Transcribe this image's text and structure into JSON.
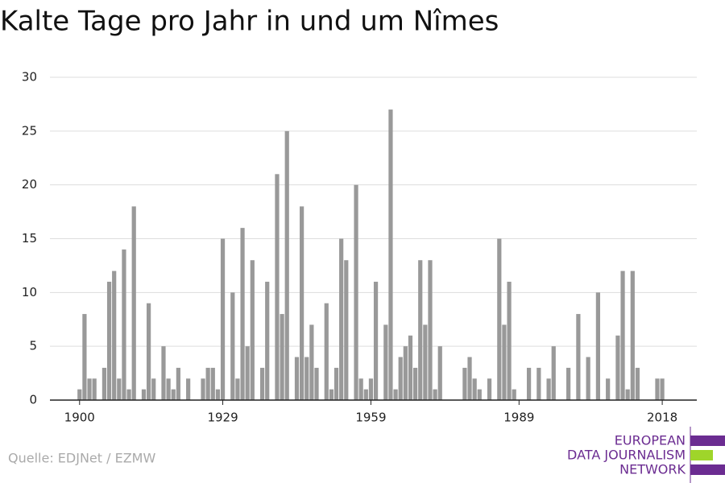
{
  "chart_data": {
    "type": "bar",
    "title": "Kalte Tage pro Jahr in und um Nîmes",
    "x": [
      1900,
      1901,
      1902,
      1903,
      1904,
      1905,
      1906,
      1907,
      1908,
      1909,
      1910,
      1911,
      1912,
      1913,
      1914,
      1915,
      1916,
      1917,
      1918,
      1919,
      1920,
      1921,
      1922,
      1923,
      1924,
      1925,
      1926,
      1927,
      1928,
      1929,
      1930,
      1931,
      1932,
      1933,
      1934,
      1935,
      1936,
      1937,
      1938,
      1939,
      1940,
      1941,
      1942,
      1943,
      1944,
      1945,
      1946,
      1947,
      1948,
      1949,
      1950,
      1951,
      1952,
      1953,
      1954,
      1955,
      1956,
      1957,
      1958,
      1959,
      1960,
      1961,
      1962,
      1963,
      1964,
      1965,
      1966,
      1967,
      1968,
      1969,
      1970,
      1971,
      1972,
      1973,
      1974,
      1975,
      1976,
      1977,
      1978,
      1979,
      1980,
      1981,
      1982,
      1983,
      1984,
      1985,
      1986,
      1987,
      1988,
      1989,
      1990,
      1991,
      1992,
      1993,
      1994,
      1995,
      1996,
      1997,
      1998,
      1999,
      2000,
      2001,
      2002,
      2003,
      2004,
      2005,
      2006,
      2007,
      2008,
      2009,
      2010,
      2011,
      2012,
      2013,
      2014,
      2015,
      2016,
      2017,
      2018
    ],
    "values": [
      1,
      8,
      2,
      2,
      0,
      3,
      11,
      12,
      2,
      14,
      1,
      18,
      0,
      1,
      9,
      2,
      0,
      5,
      2,
      1,
      3,
      0,
      2,
      0,
      0,
      2,
      3,
      3,
      1,
      15,
      0,
      10,
      2,
      16,
      5,
      13,
      0,
      3,
      11,
      0,
      21,
      8,
      25,
      0,
      4,
      18,
      4,
      7,
      3,
      0,
      9,
      1,
      3,
      15,
      13,
      0,
      20,
      2,
      1,
      2,
      11,
      0,
      7,
      27,
      1,
      4,
      5,
      6,
      3,
      13,
      7,
      13,
      1,
      5,
      0,
      0,
      0,
      0,
      3,
      4,
      2,
      1,
      0,
      2,
      0,
      15,
      7,
      11,
      1,
      0,
      0,
      3,
      0,
      3,
      0,
      2,
      5,
      0,
      0,
      3,
      0,
      8,
      0,
      4,
      0,
      10,
      0,
      2,
      0,
      6,
      12,
      1,
      12,
      3,
      0,
      0,
      0,
      2,
      2
    ],
    "color": "#999999",
    "xlim": [
      1894,
      2025
    ],
    "xticks": [
      1900,
      1929,
      1959,
      1989,
      2018
    ],
    "ylim": [
      0,
      30
    ],
    "yticks": [
      0,
      5,
      10,
      15,
      20,
      25,
      30
    ],
    "grid": true,
    "source": "Quelle: EDJNet / EZMW"
  },
  "logo": {
    "lines": [
      "EUROPEAN",
      "DATA JOURNALISM",
      "NETWORK"
    ]
  }
}
